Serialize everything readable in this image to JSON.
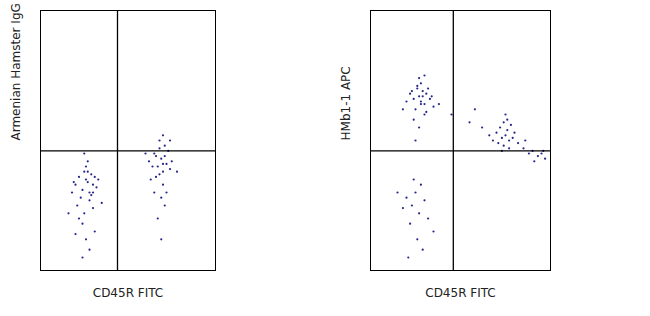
{
  "chart_data": [
    {
      "type": "scatter",
      "x_label": "CD45R FITC",
      "y_label": "Armenian Hamster IgG APC",
      "xlim": [
        0,
        100
      ],
      "ylim": [
        0,
        100
      ],
      "tick_labels": false,
      "color": "#23268a",
      "gate_x": 44,
      "gate_y": 46,
      "x": [
        20,
        22,
        24,
        25,
        26,
        27,
        28,
        29,
        30,
        31,
        23,
        26,
        28,
        32,
        18,
        21,
        25,
        29,
        33,
        27,
        24,
        30,
        19,
        26,
        22,
        28,
        31,
        35,
        16,
        24,
        27,
        30,
        20,
        25,
        62,
        65,
        67,
        68,
        69,
        70,
        71,
        72,
        74,
        66,
        68,
        70,
        73,
        64,
        69,
        71,
        67,
        75,
        63,
        70,
        72,
        66,
        78,
        60,
        69,
        71,
        68,
        74,
        65,
        70
      ],
      "values": [
        33,
        36,
        31,
        38,
        35,
        34,
        30,
        37,
        33,
        36,
        28,
        40,
        27,
        32,
        30,
        25,
        22,
        29,
        35,
        42,
        18,
        24,
        34,
        12,
        20,
        8,
        15,
        26,
        22,
        5,
        38,
        30,
        14,
        45,
        42,
        45,
        40,
        47,
        43,
        38,
        44,
        41,
        39,
        36,
        50,
        33,
        46,
        40,
        28,
        48,
        20,
        42,
        35,
        52,
        30,
        44,
        38,
        45,
        12,
        25,
        37,
        50,
        30,
        41
      ]
    },
    {
      "type": "scatter",
      "x_label": "CD45R FITC",
      "y_label": "HMb1-1 APC",
      "xlim": [
        0,
        100
      ],
      "ylim": [
        0,
        100
      ],
      "tick_labels": false,
      "color": "#23268a",
      "gate_x": 46,
      "gate_y": 46,
      "x": [
        22,
        24,
        26,
        27,
        28,
        29,
        30,
        31,
        33,
        25,
        28,
        30,
        20,
        27,
        32,
        35,
        24,
        29,
        26,
        31,
        23,
        28,
        34,
        30,
        27,
        38,
        18,
        25,
        70,
        72,
        73,
        74,
        75,
        76,
        77,
        78,
        71,
        74,
        76,
        79,
        73,
        75,
        80,
        68,
        77,
        82,
        85,
        88,
        90,
        93,
        95,
        97,
        86,
        91,
        96,
        45,
        55,
        62,
        66,
        58,
        20,
        23,
        25,
        27,
        30,
        22,
        28,
        18,
        32,
        26,
        24,
        15,
        29,
        21,
        35
      ],
      "values": [
        68,
        66,
        70,
        67,
        65,
        69,
        64,
        68,
        66,
        62,
        72,
        60,
        65,
        74,
        70,
        63,
        58,
        67,
        71,
        61,
        69,
        64,
        67,
        75,
        55,
        64,
        62,
        50,
        53,
        55,
        51,
        57,
        52,
        54,
        50,
        56,
        49,
        48,
        58,
        51,
        46,
        60,
        53,
        50,
        47,
        49,
        47,
        45,
        46,
        44,
        45,
        43,
        50,
        42,
        46,
        60,
        57,
        55,
        52,
        62,
        28,
        25,
        30,
        22,
        27,
        18,
        33,
        24,
        20,
        12,
        35,
        30,
        8,
        5,
        15
      ]
    }
  ]
}
